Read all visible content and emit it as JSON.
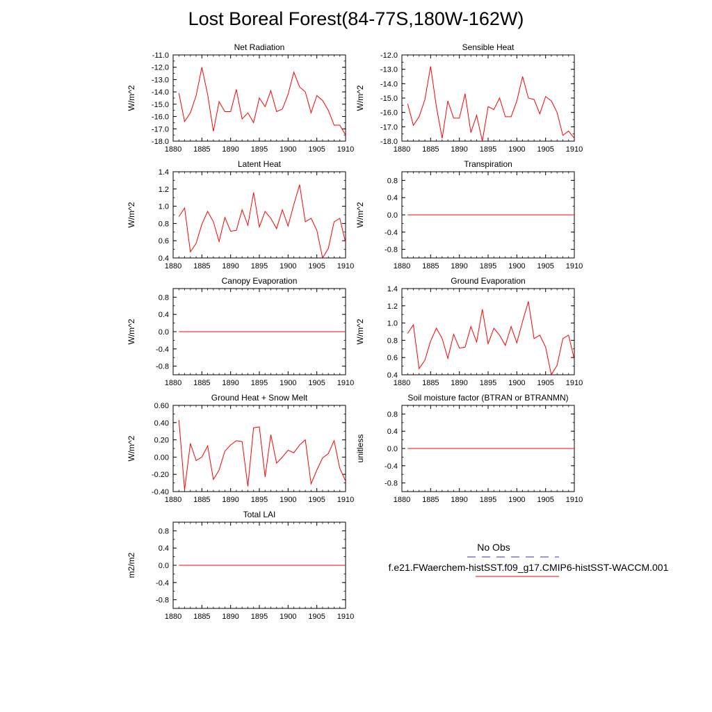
{
  "title": "Lost Boreal Forest(84-77S,180W-162W)",
  "legend": {
    "obs_label": "No Obs",
    "obs_color": "#3333aa",
    "model_label": "f.e21.FWaerchem-histSST.f09_g17.CMIP6-histSST-WACCM.001",
    "model_color": "#ff0000"
  },
  "chart_data": [
    {
      "id": "net-radiation",
      "type": "line",
      "title": "Net Radiation",
      "xlabel": "",
      "ylabel": "W/m^2",
      "xlim": [
        1880,
        1910
      ],
      "ylim": [
        -18.0,
        -11.0
      ],
      "xticks": [
        1880,
        1885,
        1890,
        1895,
        1900,
        1905,
        1910
      ],
      "yticks": [
        -18.0,
        -17.0,
        -16.0,
        -15.0,
        -14.0,
        -13.0,
        -12.0,
        -11.0
      ],
      "ytick_decimals": 1,
      "x": [
        1881,
        1882,
        1883,
        1884,
        1885,
        1886,
        1887,
        1888,
        1889,
        1890,
        1891,
        1892,
        1893,
        1894,
        1895,
        1896,
        1897,
        1898,
        1899,
        1900,
        1901,
        1902,
        1903,
        1904,
        1905,
        1906,
        1907,
        1908,
        1909,
        1910
      ],
      "series": [
        {
          "values": [
            -14.1,
            -16.4,
            -15.7,
            -14.3,
            -12.0,
            -14.2,
            -17.2,
            -14.8,
            -15.6,
            -15.6,
            -13.8,
            -16.2,
            -15.7,
            -16.5,
            -14.5,
            -15.2,
            -13.9,
            -15.6,
            -15.4,
            -14.2,
            -12.4,
            -13.6,
            -14.0,
            -15.7,
            -14.3,
            -14.7,
            -15.5,
            -16.7,
            -16.7,
            -17.5
          ]
        }
      ]
    },
    {
      "id": "sensible-heat",
      "type": "line",
      "title": "Sensible Heat",
      "xlabel": "",
      "ylabel": "W/m^2",
      "xlim": [
        1880,
        1910
      ],
      "ylim": [
        -18.0,
        -12.0
      ],
      "xticks": [
        1880,
        1885,
        1890,
        1895,
        1900,
        1905,
        1910
      ],
      "yticks": [
        -18.0,
        -17.0,
        -16.0,
        -15.0,
        -14.0,
        -13.0,
        -12.0
      ],
      "ytick_decimals": 1,
      "x": [
        1881,
        1882,
        1883,
        1884,
        1885,
        1886,
        1887,
        1888,
        1889,
        1890,
        1891,
        1892,
        1893,
        1894,
        1895,
        1896,
        1897,
        1898,
        1899,
        1900,
        1901,
        1902,
        1903,
        1904,
        1905,
        1906,
        1907,
        1908,
        1909,
        1910
      ],
      "series": [
        {
          "values": [
            -15.4,
            -16.9,
            -16.3,
            -15.1,
            -12.8,
            -15.6,
            -17.8,
            -15.2,
            -16.4,
            -16.4,
            -14.7,
            -17.4,
            -16.2,
            -18.0,
            -15.6,
            -15.8,
            -15.0,
            -16.3,
            -16.3,
            -15.2,
            -13.5,
            -15.0,
            -15.1,
            -16.1,
            -14.9,
            -15.2,
            -16.0,
            -17.6,
            -17.3,
            -17.8
          ]
        }
      ]
    },
    {
      "id": "latent-heat",
      "type": "line",
      "title": "Latent Heat",
      "xlabel": "",
      "ylabel": "W/m^2",
      "xlim": [
        1880,
        1910
      ],
      "ylim": [
        0.4,
        1.4
      ],
      "xticks": [
        1880,
        1885,
        1890,
        1895,
        1900,
        1905,
        1910
      ],
      "yticks": [
        0.4,
        0.6,
        0.8,
        1.0,
        1.2,
        1.4
      ],
      "ytick_decimals": 1,
      "x": [
        1881,
        1882,
        1883,
        1884,
        1885,
        1886,
        1887,
        1888,
        1889,
        1890,
        1891,
        1892,
        1893,
        1894,
        1895,
        1896,
        1897,
        1898,
        1899,
        1900,
        1901,
        1902,
        1903,
        1904,
        1905,
        1906,
        1907,
        1908,
        1909,
        1910
      ],
      "series": [
        {
          "values": [
            0.88,
            0.98,
            0.47,
            0.57,
            0.79,
            0.94,
            0.82,
            0.59,
            0.87,
            0.71,
            0.72,
            0.96,
            0.78,
            1.16,
            0.76,
            0.94,
            0.86,
            0.74,
            0.96,
            0.77,
            1.02,
            1.25,
            0.82,
            0.86,
            0.72,
            0.4,
            0.51,
            0.82,
            0.86,
            0.58
          ]
        }
      ]
    },
    {
      "id": "transpiration",
      "type": "line",
      "title": "Transpiration",
      "xlabel": "",
      "ylabel": "W/m^2",
      "xlim": [
        1880,
        1910
      ],
      "ylim": [
        -1.0,
        1.0
      ],
      "xticks": [
        1880,
        1885,
        1890,
        1895,
        1900,
        1905,
        1910
      ],
      "yticks": [
        -0.8,
        -0.4,
        0.0,
        0.4,
        0.8
      ],
      "ytick_decimals": 1,
      "x": [
        1881,
        1910
      ],
      "series": [
        {
          "values": [
            0.0,
            0.0
          ]
        }
      ]
    },
    {
      "id": "canopy-evaporation",
      "type": "line",
      "title": "Canopy Evaporation",
      "xlabel": "",
      "ylabel": "W/m^2",
      "xlim": [
        1880,
        1910
      ],
      "ylim": [
        -1.0,
        1.0
      ],
      "xticks": [
        1880,
        1885,
        1890,
        1895,
        1900,
        1905,
        1910
      ],
      "yticks": [
        -0.8,
        -0.4,
        0.0,
        0.4,
        0.8
      ],
      "ytick_decimals": 1,
      "x": [
        1881,
        1910
      ],
      "series": [
        {
          "values": [
            0.0,
            0.0
          ]
        }
      ]
    },
    {
      "id": "ground-evaporation",
      "type": "line",
      "title": "Ground Evaporation",
      "xlabel": "",
      "ylabel": "W/m^2",
      "xlim": [
        1880,
        1910
      ],
      "ylim": [
        0.4,
        1.4
      ],
      "xticks": [
        1880,
        1885,
        1890,
        1895,
        1900,
        1905,
        1910
      ],
      "yticks": [
        0.4,
        0.6,
        0.8,
        1.0,
        1.2,
        1.4
      ],
      "ytick_decimals": 1,
      "x": [
        1881,
        1882,
        1883,
        1884,
        1885,
        1886,
        1887,
        1888,
        1889,
        1890,
        1891,
        1892,
        1893,
        1894,
        1895,
        1896,
        1897,
        1898,
        1899,
        1900,
        1901,
        1902,
        1903,
        1904,
        1905,
        1906,
        1907,
        1908,
        1909,
        1910
      ],
      "series": [
        {
          "values": [
            0.88,
            0.98,
            0.47,
            0.57,
            0.79,
            0.94,
            0.82,
            0.59,
            0.87,
            0.71,
            0.72,
            0.96,
            0.78,
            1.16,
            0.76,
            0.94,
            0.86,
            0.74,
            0.96,
            0.77,
            1.02,
            1.25,
            0.82,
            0.86,
            0.72,
            0.4,
            0.51,
            0.82,
            0.86,
            0.58
          ]
        }
      ]
    },
    {
      "id": "ground-heat-snow-melt",
      "type": "line",
      "title": "Ground Heat + Snow Melt",
      "xlabel": "",
      "ylabel": "W/m^2",
      "xlim": [
        1880,
        1910
      ],
      "ylim": [
        -0.4,
        0.6
      ],
      "xticks": [
        1880,
        1885,
        1890,
        1895,
        1900,
        1905,
        1910
      ],
      "yticks": [
        -0.4,
        -0.2,
        0.0,
        0.2,
        0.4,
        0.6
      ],
      "ytick_decimals": 2,
      "x": [
        1881,
        1882,
        1883,
        1884,
        1885,
        1886,
        1887,
        1888,
        1889,
        1890,
        1891,
        1892,
        1893,
        1894,
        1895,
        1896,
        1897,
        1898,
        1899,
        1900,
        1901,
        1902,
        1903,
        1904,
        1905,
        1906,
        1907,
        1908,
        1909,
        1910
      ],
      "series": [
        {
          "values": [
            0.43,
            -0.38,
            0.16,
            -0.04,
            0.0,
            0.13,
            -0.26,
            -0.15,
            0.07,
            0.14,
            0.19,
            0.18,
            -0.34,
            0.34,
            0.35,
            -0.23,
            0.26,
            -0.07,
            0.0,
            0.08,
            0.05,
            0.14,
            0.2,
            -0.31,
            -0.15,
            -0.01,
            0.04,
            0.19,
            -0.13,
            -0.28
          ]
        }
      ]
    },
    {
      "id": "soil-moisture-factor",
      "type": "line",
      "title": "Soil moisture factor (BTRAN or BTRANMN)",
      "xlabel": "",
      "ylabel": "unitless",
      "xlim": [
        1880,
        1910
      ],
      "ylim": [
        -1.0,
        1.0
      ],
      "xticks": [
        1880,
        1885,
        1890,
        1895,
        1900,
        1905,
        1910
      ],
      "yticks": [
        -0.8,
        -0.4,
        0.0,
        0.4,
        0.8
      ],
      "ytick_decimals": 1,
      "x": [
        1881,
        1910
      ],
      "series": [
        {
          "values": [
            0.0,
            0.0
          ]
        }
      ]
    },
    {
      "id": "total-lai",
      "type": "line",
      "title": "Total LAI",
      "xlabel": "",
      "ylabel": "m2/m2",
      "xlim": [
        1880,
        1910
      ],
      "ylim": [
        -1.0,
        1.0
      ],
      "xticks": [
        1880,
        1885,
        1890,
        1895,
        1900,
        1905,
        1910
      ],
      "yticks": [
        -0.8,
        -0.4,
        0.0,
        0.4,
        0.8
      ],
      "ytick_decimals": 1,
      "x": [
        1881,
        1910
      ],
      "series": [
        {
          "values": [
            0.0,
            0.0
          ]
        }
      ]
    }
  ]
}
